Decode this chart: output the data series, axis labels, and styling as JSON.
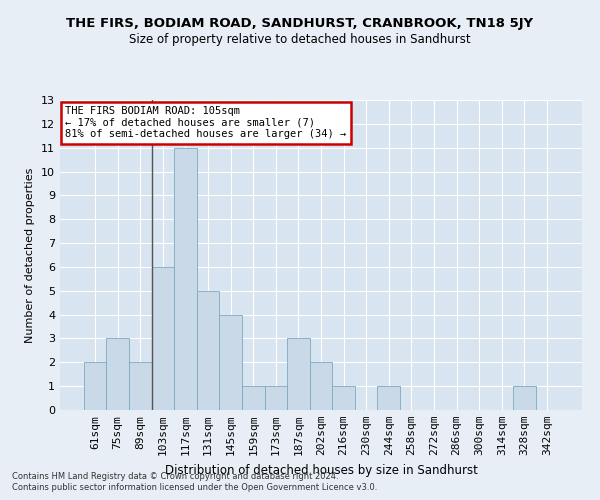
{
  "title": "THE FIRS, BODIAM ROAD, SANDHURST, CRANBROOK, TN18 5JY",
  "subtitle": "Size of property relative to detached houses in Sandhurst",
  "xlabel": "Distribution of detached houses by size in Sandhurst",
  "ylabel": "Number of detached properties",
  "categories": [
    "61sqm",
    "75sqm",
    "89sqm",
    "103sqm",
    "117sqm",
    "131sqm",
    "145sqm",
    "159sqm",
    "173sqm",
    "187sqm",
    "202sqm",
    "216sqm",
    "230sqm",
    "244sqm",
    "258sqm",
    "272sqm",
    "286sqm",
    "300sqm",
    "314sqm",
    "328sqm",
    "342sqm"
  ],
  "values": [
    2,
    3,
    2,
    6,
    11,
    5,
    4,
    1,
    1,
    3,
    2,
    1,
    0,
    1,
    0,
    0,
    0,
    0,
    0,
    1,
    0
  ],
  "bar_color": "#c9d9e8",
  "bar_edge_color": "#7aaabf",
  "annotation_text": "THE FIRS BODIAM ROAD: 105sqm\n← 17% of detached houses are smaller (7)\n81% of semi-detached houses are larger (34) →",
  "annotation_box_color": "#ffffff",
  "annotation_box_edge": "#cc0000",
  "footnote1": "Contains HM Land Registry data © Crown copyright and database right 2024.",
  "footnote2": "Contains public sector information licensed under the Open Government Licence v3.0.",
  "ylim": [
    0,
    13
  ],
  "bg_color": "#e8eef5",
  "plot_bg_color": "#d8e4ef"
}
